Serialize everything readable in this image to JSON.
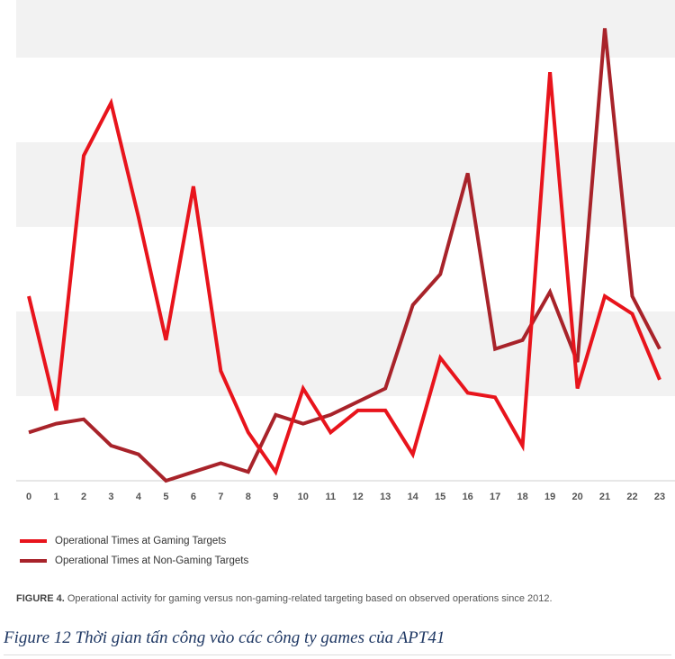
{
  "chart_data": {
    "type": "line",
    "x": [
      0,
      1,
      2,
      3,
      4,
      5,
      6,
      7,
      8,
      9,
      10,
      11,
      12,
      13,
      14,
      15,
      16,
      17,
      18,
      19,
      20,
      21,
      22,
      23
    ],
    "ylim": [
      0,
      10
    ],
    "grid": "alternating horizontal bands",
    "legend_position": "bottom-left",
    "series": [
      {
        "name": "Operational Times at Gaming Targets",
        "color": "#e8141c",
        "values": [
          4.2,
          1.6,
          7.4,
          8.6,
          6.0,
          3.2,
          6.7,
          2.5,
          1.1,
          0.2,
          2.1,
          1.1,
          1.6,
          1.6,
          0.6,
          2.8,
          2.0,
          1.9,
          0.8,
          9.3,
          2.1,
          4.2,
          3.8,
          2.3
        ]
      },
      {
        "name": "Operational Times at Non-Gaming Targets",
        "color": "#a8232a",
        "values": [
          1.1,
          1.3,
          1.4,
          0.8,
          0.6,
          0.0,
          0.2,
          0.4,
          0.2,
          1.5,
          1.3,
          1.5,
          1.8,
          2.1,
          4.0,
          4.7,
          7.0,
          3.0,
          3.2,
          4.3,
          2.7,
          10.3,
          4.2,
          3.0
        ]
      }
    ]
  },
  "figure_caption": {
    "label": "FIGURE 4.",
    "text": " Operational activity for gaming versus non-gaming-related targeting based on observed operations since 2012."
  },
  "document_caption": "Figure 12 Thời gian tấn công vào các công ty games của APT41"
}
